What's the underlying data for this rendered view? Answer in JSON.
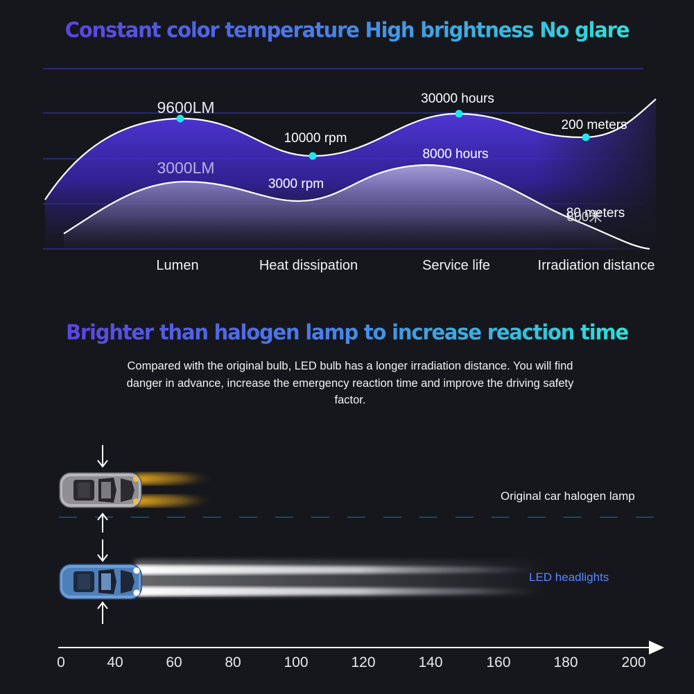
{
  "headline_1": "Constant color temperature High brightness No glare",
  "headline_2": "Brighter than halogen lamp to increase reaction time",
  "description": "Compared with the original bulb, LED bulb has a longer irradiation distance. You will find danger in advance, increase the emergency reaction time and improve the driving safety factor.",
  "chart_data": {
    "type": "line",
    "categories": [
      "Lumen",
      "Heat dissipation",
      "Service life",
      "Irradiation distance"
    ],
    "series": [
      {
        "values": [
          "9600LM",
          "10000 rpm",
          "30000 hours",
          "200 meters"
        ]
      },
      {
        "values": [
          "3000LM",
          "3000 rpm",
          "8000 hours",
          "80 meters"
        ]
      }
    ],
    "overlap_text": "800米",
    "grid": true,
    "colors": {
      "upper_fill": "#4a2fd6",
      "lower_fill": "#9a93c4",
      "marker": "#22e6ee",
      "gridline": "#3a3cc8"
    }
  },
  "lanes": {
    "halogen_label": "Original car halogen lamp",
    "led_label": "LED headlights",
    "halogen_beam_color": "#f2b21c",
    "led_beam_color": "#ffffff"
  },
  "axis_ticks": [
    "0",
    "40",
    "60",
    "80",
    "100",
    "120",
    "140",
    "160",
    "180",
    "200"
  ]
}
